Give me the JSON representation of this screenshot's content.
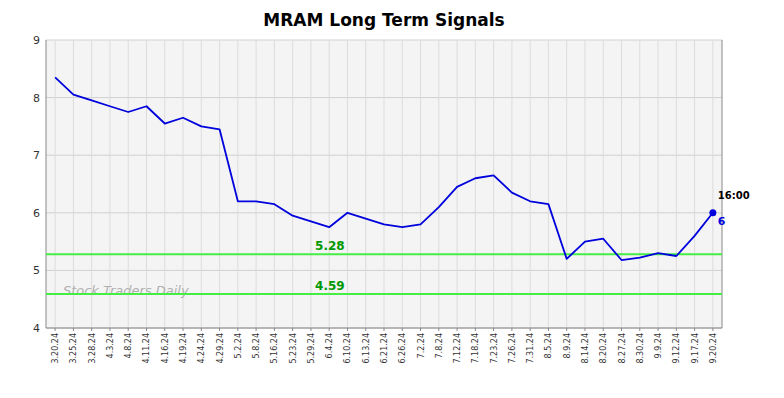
{
  "chart_data": {
    "type": "line",
    "title": "MRAM Long Term Signals",
    "categories": [
      "3.20.24",
      "3.25.24",
      "3.28.24",
      "4.3.24",
      "4.8.24",
      "4.11.24",
      "4.16.24",
      "4.19.24",
      "4.24.24",
      "4.29.24",
      "5.2.24",
      "5.8.24",
      "5.16.24",
      "5.23.24",
      "5.29.24",
      "6.4.24",
      "6.10.24",
      "6.13.24",
      "6.21.24",
      "6.26.24",
      "7.2.24",
      "7.8.24",
      "7.12.24",
      "7.18.24",
      "7.23.24",
      "7.26.24",
      "7.31.24",
      "8.5.24",
      "8.9.24",
      "8.14.24",
      "8.20.24",
      "8.27.24",
      "8.30.24",
      "9.9.24",
      "9.12.24",
      "9.17.24",
      "9.20.24"
    ],
    "values": [
      8.35,
      8.05,
      7.95,
      7.85,
      7.75,
      7.85,
      7.55,
      7.65,
      7.5,
      7.45,
      6.2,
      6.2,
      6.15,
      5.95,
      5.85,
      5.75,
      6.0,
      5.9,
      5.8,
      5.75,
      5.8,
      6.1,
      6.45,
      6.6,
      6.65,
      6.35,
      6.2,
      6.15,
      5.2,
      5.5,
      5.55,
      5.18,
      5.22,
      5.3,
      5.25,
      5.6,
      6.0
    ],
    "color": "#0000dd",
    "ylim": [
      4.0,
      9.0
    ],
    "yticks": [
      4,
      5,
      6,
      7,
      8,
      9
    ],
    "grid": true,
    "hlines": [
      {
        "value": 5.28,
        "label": "5.28",
        "color": "#44ee44",
        "label_color": "#009900"
      },
      {
        "value": 4.59,
        "label": "4.59",
        "color": "#44ee44",
        "label_color": "#009900"
      }
    ],
    "annotations": [
      {
        "text": "16:00"
      },
      {
        "text": "6"
      }
    ],
    "watermark": "Stock Traders Daily"
  }
}
